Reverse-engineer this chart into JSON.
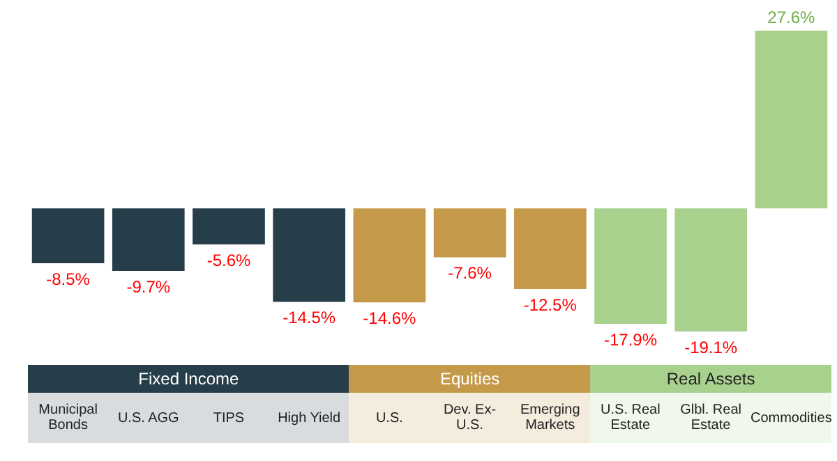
{
  "chart_data": {
    "type": "bar",
    "categories": [
      "Municipal Bonds",
      "U.S. AGG",
      "TIPS",
      "High Yield",
      "U.S.",
      "Dev. Ex-U.S.",
      "Emerging Markets",
      "U.S. Real Estate",
      "Glbl. Real Estate",
      "Commodities"
    ],
    "values": [
      -8.5,
      -9.7,
      -5.6,
      -14.5,
      -14.6,
      -7.6,
      -12.5,
      -17.9,
      -19.1,
      27.6
    ],
    "colors": [
      "#263d4a",
      "#263d4a",
      "#263d4a",
      "#263d4a",
      "#c49a4a",
      "#c49a4a",
      "#c49a4a",
      "#a9d18e",
      "#a9d18e",
      "#a9d18e"
    ],
    "value_labels": [
      "-8.5%",
      "-9.7%",
      "-5.6%",
      "-14.5%",
      "-14.6%",
      "-7.6%",
      "-12.5%",
      "-17.9%",
      "-19.1%",
      "27.6%"
    ],
    "annotations": [
      "Fixed Income",
      "Equities",
      "Real Assets"
    ],
    "legend": false
  }
}
